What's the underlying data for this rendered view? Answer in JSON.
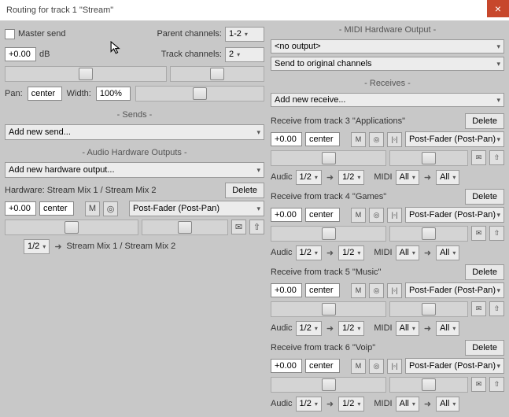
{
  "window": {
    "title": "Routing for track 1 \"Stream\""
  },
  "master": {
    "label": "Master send",
    "volume": "+0.00",
    "vol_unit": "dB",
    "parent_label": "Parent channels:",
    "parent_val": "1-2",
    "track_label": "Track channels:",
    "track_val": "2",
    "pan_label": "Pan:",
    "pan_val": "center",
    "width_label": "Width:",
    "width_val": "100%"
  },
  "sends": {
    "title": "Sends",
    "add": "Add new send..."
  },
  "hw": {
    "title": "Audio Hardware Outputs",
    "add": "Add new hardware output...",
    "item": {
      "label": "Hardware: Stream Mix 1 / Stream Mix 2",
      "delete": "Delete",
      "vol": "+0.00",
      "pan": "center",
      "mode": "Post-Fader (Post-Pan)",
      "ch": "1/2",
      "dest": "Stream Mix 1 / Stream Mix 2"
    }
  },
  "midi": {
    "title": "MIDI Hardware Output",
    "nooutput": "<no output>",
    "sendto": "Send to original channels"
  },
  "recvs": {
    "title": "Receives",
    "add": "Add new receive...",
    "delete": "Delete",
    "mode": "Post-Fader (Post-Pan)",
    "audio_label": "Audic",
    "midi_label": "MIDI",
    "all": "All",
    "ch": "1/2",
    "items": [
      {
        "label": "Receive from track 3 \"Applications\"",
        "vol": "+0.00",
        "pan": "center"
      },
      {
        "label": "Receive from track 4 \"Games\"",
        "vol": "+0.00",
        "pan": "center"
      },
      {
        "label": "Receive from track 5 \"Music\"",
        "vol": "+0.00",
        "pan": "center"
      },
      {
        "label": "Receive from track 6 \"Voip\"",
        "vol": "+0.00",
        "pan": "center"
      }
    ]
  },
  "icons": {
    "M": "M",
    "phase": "◎",
    "mono": "|◦|",
    "env": "✉",
    "up": "⇧"
  }
}
